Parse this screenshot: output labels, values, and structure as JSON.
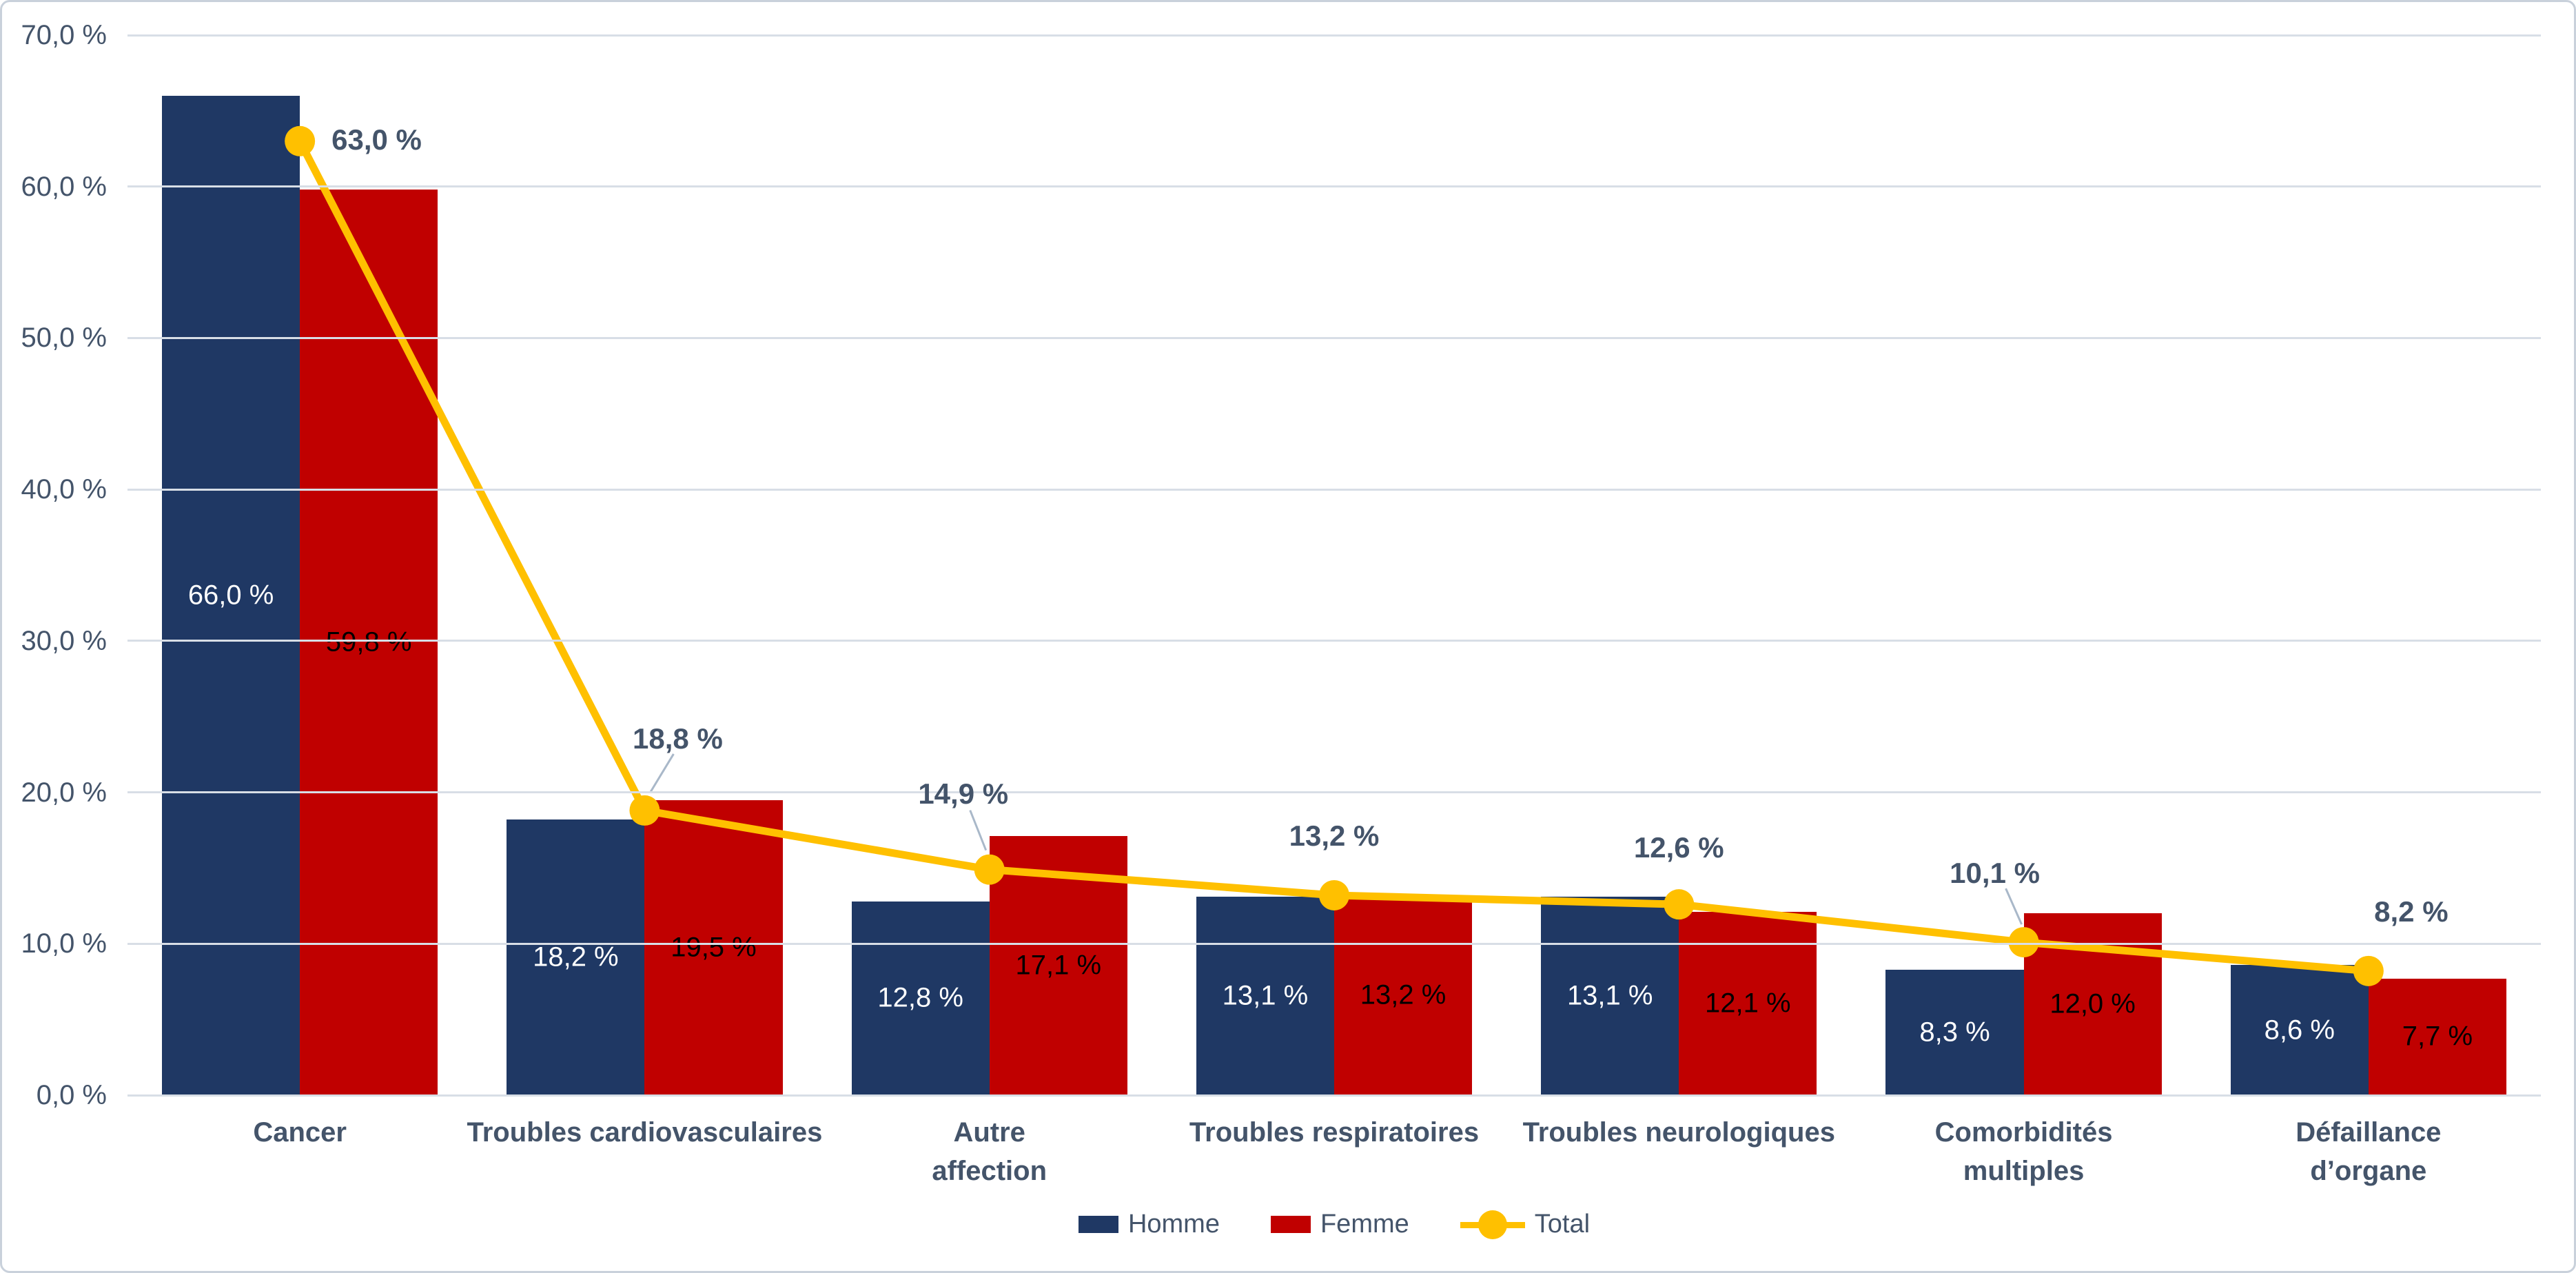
{
  "chart_data": {
    "type": "bar+line",
    "categories": [
      "Cancer",
      "Troubles cardiovasculaires",
      "Autre\naffection",
      "Troubles respiratoires",
      "Troubles neurologiques",
      "Comorbidités\nmultiples",
      "Défaillance\nd’organe"
    ],
    "series": [
      {
        "name": "Homme",
        "kind": "bar",
        "color": "#1F3864",
        "values": [
          66.0,
          18.2,
          12.8,
          13.1,
          13.1,
          8.3,
          8.6
        ],
        "labels": [
          "66,0 %",
          "18,2 %",
          "12,8 %",
          "13,1 %",
          "13,1 %",
          "8,3 %",
          "8,6 %"
        ]
      },
      {
        "name": "Femme",
        "kind": "bar",
        "color": "#C00000",
        "values": [
          59.8,
          19.5,
          17.1,
          13.2,
          12.1,
          12.0,
          7.7
        ],
        "labels": [
          "59,8 %",
          "19,5 %",
          "17,1 %",
          "13,2 %",
          "12,1 %",
          "12,0 %",
          "7,7 %"
        ]
      },
      {
        "name": "Total",
        "kind": "line",
        "color": "#FFC000",
        "values": [
          63.0,
          18.8,
          14.9,
          13.2,
          12.6,
          10.1,
          8.2
        ],
        "labels": [
          "63,0 %",
          "18,8 %",
          "14,9 %",
          "13,2 %",
          "12,6 %",
          "10,1 %",
          "8,2 %"
        ]
      }
    ],
    "y_axis": {
      "min": 0,
      "max": 70,
      "tick_step": 10,
      "tick_labels": [
        "70,0 %",
        "60,0 %",
        "50,0 %",
        "40,0 %",
        "30,0 %",
        "20,0 %",
        "10,0 %",
        "0,0 %"
      ]
    },
    "legend": {
      "position": "bottom",
      "items": [
        "Homme",
        "Femme",
        "Total"
      ]
    },
    "grid": true,
    "title": "",
    "xlabel": "",
    "ylabel": ""
  },
  "colors": {
    "homme_bar": "#1F3864",
    "femme_bar": "#C00000",
    "total_line": "#FFC000",
    "text": "#44546A",
    "gridline": "#D8DEE6",
    "frame_border": "#C9D1DB",
    "leader_line": "#A9B8C9",
    "background": "#FFFFFF"
  }
}
